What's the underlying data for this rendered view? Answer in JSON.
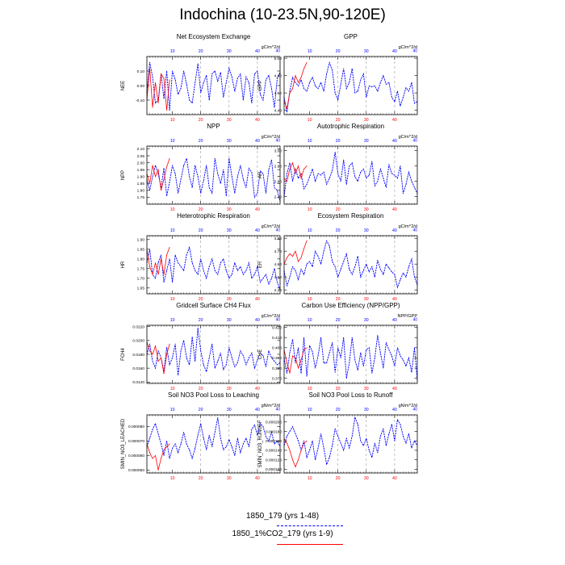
{
  "title": "Indochina (10-23.5N,90-120E)",
  "legend": [
    {
      "label": "1850_179 (yrs 1-48)",
      "color": "#0000ff",
      "dash": true
    },
    {
      "label": "1850_1%CO2_179 (yrs 1-9)",
      "color": "#ff0000",
      "dash": false
    }
  ],
  "chart_data": [
    {
      "type": "line",
      "title": "Net Ecosystem Exchange",
      "units": "gC/m^2/d",
      "ylabel": "NEE",
      "ylim": [
        -0.2,
        0.2
      ],
      "yticks": [
        -0.1,
        0.0,
        0.1
      ],
      "ytick_labels": [
        "-0.10",
        "0.00",
        "0.10"
      ],
      "series": [
        {
          "values": [
            -0.05,
            0.16,
            0.06,
            -0.12,
            -0.1,
            0.08,
            -0.09,
            0.1,
            -0.17,
            0.1,
            0.04,
            -0.06,
            -0.02,
            0.1,
            0.01,
            -0.1,
            -0.12,
            0.02,
            0.15,
            -0.05,
            0.02,
            0.07,
            -0.1,
            0.08,
            0.1,
            0.03,
            0.09,
            -0.08,
            0.02,
            0.12,
            0.06,
            -0.04,
            0.05,
            0.08,
            -0.1,
            0.06,
            0.02,
            -0.12,
            0.08,
            0.1,
            -0.06,
            -0.1,
            0.04,
            0.07,
            -0.02,
            -0.15,
            0.05,
            0.09
          ]
        },
        {
          "values": [
            -0.1,
            0.12,
            -0.15,
            0.02,
            -0.12,
            0.08,
            0.05,
            -0.17,
            0.04
          ]
        }
      ]
    },
    {
      "type": "line",
      "title": "GPP",
      "units": "gC/m^2/d",
      "ylabel": "GPP",
      "ylim": [
        4.35,
        5.02
      ],
      "yticks": [
        4.4,
        4.6,
        4.8,
        5.0
      ],
      "ytick_labels": [
        "4.40",
        "4.60",
        "4.80",
        "5.00"
      ],
      "series": [
        {
          "values": [
            4.55,
            4.38,
            4.62,
            4.78,
            4.72,
            4.68,
            4.75,
            4.65,
            4.62,
            4.72,
            4.78,
            4.68,
            4.65,
            4.72,
            4.62,
            4.82,
            4.95,
            4.86,
            4.6,
            4.52,
            4.7,
            4.88,
            4.65,
            4.72,
            4.88,
            4.6,
            4.62,
            4.75,
            4.82,
            4.55,
            4.68,
            4.67,
            4.68,
            4.62,
            4.72,
            4.8,
            4.7,
            4.72,
            4.55,
            4.5,
            4.62,
            4.45,
            4.55,
            4.66,
            4.62,
            4.72,
            4.48,
            4.5
          ]
        },
        {
          "values": [
            4.5,
            4.42,
            4.6,
            4.65,
            4.8,
            4.72,
            4.78,
            4.88,
            4.95
          ]
        }
      ]
    },
    {
      "type": "line",
      "title": "NPP",
      "units": "gC/m^2/d",
      "ylabel": "NPP",
      "ylim": [
        1.7,
        2.12
      ],
      "yticks": [
        1.75,
        1.8,
        1.85,
        1.9,
        1.95,
        2.0,
        2.05,
        2.1
      ],
      "ytick_labels": [
        "1.75",
        "1.80",
        "1.85",
        "1.90",
        "1.95",
        "2.00",
        "2.05",
        "2.10"
      ],
      "series": [
        {
          "values": [
            1.88,
            1.8,
            1.9,
            1.98,
            1.92,
            1.82,
            1.96,
            1.76,
            1.86,
            1.98,
            1.92,
            1.78,
            1.88,
            1.98,
            2.03,
            1.9,
            1.82,
            1.98,
            1.9,
            1.78,
            1.87,
            1.98,
            1.82,
            1.78,
            2.03,
            1.92,
            1.85,
            1.95,
            1.76,
            2.03,
            1.9,
            1.78,
            1.9,
            1.98,
            1.88,
            1.82,
            1.96,
            1.93,
            1.75,
            1.78,
            1.94,
            1.92,
            1.78,
            1.95,
            2.02,
            1.82,
            1.8,
            1.72
          ]
        },
        {
          "values": [
            1.92,
            1.85,
            1.98,
            1.9,
            1.95,
            1.8,
            1.88,
            1.97,
            2.03
          ]
        }
      ]
    },
    {
      "type": "line",
      "title": "Autotrophic Respiration",
      "units": "gC/m^2/d",
      "ylabel": "AR",
      "ylim": [
        2.65,
        3.03
      ],
      "yticks": [
        2.7,
        2.8,
        2.9,
        3.0
      ],
      "ytick_labels": [
        "2.70",
        "2.80",
        "2.90",
        "3.00"
      ],
      "series": [
        {
          "values": [
            2.7,
            2.85,
            2.92,
            2.8,
            2.88,
            2.82,
            2.85,
            2.75,
            2.78,
            2.83,
            2.88,
            2.8,
            2.85,
            2.84,
            2.86,
            2.78,
            2.82,
            2.87,
            2.99,
            2.85,
            2.8,
            2.94,
            2.78,
            2.9,
            2.92,
            2.83,
            2.8,
            2.86,
            2.88,
            2.82,
            2.84,
            2.93,
            2.77,
            2.8,
            2.88,
            2.82,
            2.76,
            2.91,
            2.85,
            2.84,
            2.82,
            2.9,
            2.72,
            2.78,
            2.86,
            2.8,
            2.76,
            2.72
          ]
        },
        {
          "values": [
            2.82,
            2.8,
            2.88,
            2.92,
            2.85,
            2.9,
            2.82,
            2.88,
            2.9
          ]
        }
      ]
    },
    {
      "type": "line",
      "title": "Heterotrophic Respiration",
      "units": "gC/m^2/d",
      "ylabel": "HR",
      "ylim": [
        1.62,
        1.92
      ],
      "yticks": [
        1.65,
        1.7,
        1.75,
        1.8,
        1.85,
        1.9
      ],
      "ytick_labels": [
        "1.65",
        "1.70",
        "1.75",
        "1.80",
        "1.85",
        "1.90"
      ],
      "series": [
        {
          "values": [
            1.78,
            1.85,
            1.72,
            1.7,
            1.78,
            1.82,
            1.68,
            1.74,
            1.8,
            1.68,
            1.82,
            1.78,
            1.76,
            1.74,
            1.82,
            1.86,
            1.78,
            1.74,
            1.72,
            1.8,
            1.74,
            1.7,
            1.76,
            1.8,
            1.74,
            1.72,
            1.78,
            1.8,
            1.74,
            1.7,
            1.72,
            1.78,
            1.74,
            1.76,
            1.72,
            1.74,
            1.78,
            1.7,
            1.72,
            1.76,
            1.68,
            1.7,
            1.72,
            1.67,
            1.7,
            1.75,
            1.68,
            1.64
          ]
        },
        {
          "values": [
            1.85,
            1.76,
            1.72,
            1.78,
            1.72,
            1.8,
            1.72,
            1.82,
            1.86
          ]
        }
      ]
    },
    {
      "type": "line",
      "title": "Ecosystem Respiration",
      "units": "gC/m^2/d",
      "ylabel": "ER",
      "ylim": [
        4.37,
        4.82
      ],
      "yticks": [
        4.4,
        4.5,
        4.6,
        4.7,
        4.8
      ],
      "ytick_labels": [
        "4.40",
        "4.50",
        "4.60",
        "4.70",
        "4.80"
      ],
      "series": [
        {
          "values": [
            4.55,
            4.43,
            4.5,
            4.58,
            4.55,
            4.48,
            4.56,
            4.52,
            4.6,
            4.62,
            4.58,
            4.7,
            4.66,
            4.6,
            4.7,
            4.78,
            4.74,
            4.62,
            4.58,
            4.5,
            4.56,
            4.62,
            4.68,
            4.56,
            4.52,
            4.58,
            4.66,
            4.5,
            4.55,
            4.6,
            4.54,
            4.58,
            4.5,
            4.63,
            4.56,
            4.52,
            4.6,
            4.57,
            4.54,
            4.52,
            4.42,
            4.48,
            4.53,
            4.5,
            4.58,
            4.64,
            4.5,
            4.44
          ]
        },
        {
          "values": [
            4.6,
            4.65,
            4.68,
            4.66,
            4.7,
            4.62,
            4.65,
            4.72,
            4.78
          ]
        }
      ]
    },
    {
      "type": "line",
      "title": "Gridcell Surface CH4 Flux",
      "units": "gC/m^2/d",
      "ylabel": "FCH4",
      "ylim": [
        0.0138,
        0.0222
      ],
      "yticks": [
        0.014,
        0.016,
        0.018,
        0.02,
        0.022
      ],
      "ytick_labels": [
        "0.0140",
        "0.0160",
        "0.0180",
        "0.0200",
        "0.0220"
      ],
      "series": [
        {
          "values": [
            0.018,
            0.0195,
            0.017,
            0.016,
            0.0185,
            0.0175,
            0.0155,
            0.019,
            0.0165,
            0.0175,
            0.0195,
            0.015,
            0.0185,
            0.02,
            0.0175,
            0.0165,
            0.0205,
            0.017,
            0.0218,
            0.0185,
            0.0165,
            0.0155,
            0.0175,
            0.0195,
            0.016,
            0.017,
            0.0182,
            0.0158,
            0.0165,
            0.019,
            0.0175,
            0.0162,
            0.0168,
            0.0185,
            0.0178,
            0.0165,
            0.0175,
            0.0182,
            0.016,
            0.0172,
            0.0182,
            0.0178,
            0.0162,
            0.0185,
            0.0175,
            0.017,
            0.0165,
            0.0168
          ]
        },
        {
          "values": [
            0.0198,
            0.0185,
            0.018,
            0.0192,
            0.017,
            0.0175,
            0.0152,
            0.018,
            0.0195
          ]
        }
      ]
    },
    {
      "type": "line",
      "title": "Carbon Use Efficiency (NPP/GPP)",
      "units": "NPP/GPP",
      "ylabel": "CUE",
      "ylim": [
        0.365,
        0.422
      ],
      "yticks": [
        0.37,
        0.38,
        0.39,
        0.4,
        0.41,
        0.42
      ],
      "ytick_labels": [
        "0.370",
        "0.380",
        "0.390",
        "0.400",
        "0.410",
        "0.420"
      ],
      "series": [
        {
          "values": [
            0.39,
            0.375,
            0.395,
            0.408,
            0.385,
            0.4,
            0.375,
            0.41,
            0.372,
            0.402,
            0.396,
            0.38,
            0.392,
            0.41,
            0.385,
            0.385,
            0.395,
            0.405,
            0.376,
            0.4,
            0.39,
            0.41,
            0.37,
            0.385,
            0.41,
            0.388,
            0.378,
            0.395,
            0.382,
            0.398,
            0.4,
            0.375,
            0.39,
            0.412,
            0.395,
            0.38,
            0.405,
            0.398,
            0.392,
            0.382,
            0.4,
            0.392,
            0.388,
            0.382,
            0.39,
            0.376,
            0.4,
            0.368
          ]
        },
        {
          "values": [
            0.398,
            0.385,
            0.375,
            0.392,
            0.39,
            0.38,
            0.388,
            0.398,
            0.4
          ]
        }
      ]
    },
    {
      "type": "line",
      "title": "Soil NO3 Pool Loss to Leaching",
      "units": "gN/m^2/d",
      "ylabel": "SMIN_NO3_LEACHED",
      "ylim": [
        4.8e-05,
        8.8e-05
      ],
      "yticks": [
        5e-05,
        6e-05,
        7e-05,
        8e-05
      ],
      "ytick_labels": [
        "0.000050",
        "0.000060",
        "0.000070",
        "0.000080"
      ],
      "series": [
        {
          "values": [
            6.6e-05,
            7.2e-05,
            7.8e-05,
            8.2e-05,
            7.5e-05,
            6.8e-05,
            6e-05,
            7e-05,
            5.8e-05,
            6.5e-05,
            6.8e-05,
            6.2e-05,
            6.8e-05,
            7.6e-05,
            6.8e-05,
            6.4e-05,
            5.8e-05,
            6.5e-05,
            7.4e-05,
            8.2e-05,
            7.2e-05,
            6.4e-05,
            7.4e-05,
            6.6e-05,
            7.6e-05,
            8.6e-05,
            7.2e-05,
            6.4e-05,
            6.6e-05,
            7.1e-05,
            6.6e-05,
            6e-05,
            7.2e-05,
            6.2e-05,
            6.8e-05,
            7.2e-05,
            6.6e-05,
            7.8e-05,
            8.1e-05,
            7.4e-05,
            8.2e-05,
            8e-05,
            7.3e-05,
            7e-05,
            7.6e-05,
            6.8e-05,
            7e-05,
            6.6e-05
          ]
        },
        {
          "values": [
            6.8e-05,
            6.2e-05,
            5.8e-05,
            6e-05,
            5e-05,
            5.8e-05,
            6.4e-05,
            6.6e-05,
            6.8e-05
          ]
        }
      ]
    },
    {
      "type": "line",
      "title": "Soil NO3 Pool Loss to Runoff",
      "units": "gN/m^2/d",
      "ylabel": "SMIN_NO3_RUNOFF",
      "ylim": [
        9.2e-05,
        0.000215
      ],
      "yticks": [
        0.0001,
        0.00012,
        0.00014,
        0.00016,
        0.00018,
        0.0002
      ],
      "ytick_labels": [
        "0.000100",
        "0.000120",
        "0.000140",
        "0.000160",
        "0.000180",
        "0.000200"
      ],
      "series": [
        {
          "values": [
            0.00015,
            0.00017,
            0.00018,
            0.00019,
            0.000175,
            0.00016,
            0.00014,
            0.00016,
            0.000125,
            0.00014,
            0.00016,
            0.00012,
            0.000145,
            0.000175,
            0.000145,
            0.00011,
            0.000125,
            0.00015,
            0.000185,
            0.00017,
            0.000155,
            0.00014,
            0.000165,
            0.000145,
            0.00017,
            0.00021,
            0.000195,
            0.00016,
            0.00015,
            0.000165,
            0.00014,
            0.000125,
            0.000155,
            0.000135,
            0.00017,
            0.000185,
            0.00015,
            0.000175,
            0.000195,
            0.00016,
            0.000205,
            0.000195,
            0.00017,
            0.000155,
            0.000175,
            0.000145,
            0.00016,
            0.00015
          ]
        },
        {
          "values": [
            0.000165,
            0.000155,
            0.00014,
            0.00012,
            0.000105,
            0.00012,
            0.00014,
            0.000155,
            0.00016
          ]
        }
      ]
    }
  ],
  "axes": {
    "xlim": [
      1,
      48
    ],
    "bottom_ticks": [
      10,
      20,
      30,
      40
    ],
    "top_ticks": [
      10,
      20,
      30,
      40
    ],
    "top_sub_label": "40",
    "dashed_x": [
      20,
      30,
      40
    ],
    "top_tick_color": "#0000ff",
    "bottom_tick_color": "#ff0000"
  }
}
